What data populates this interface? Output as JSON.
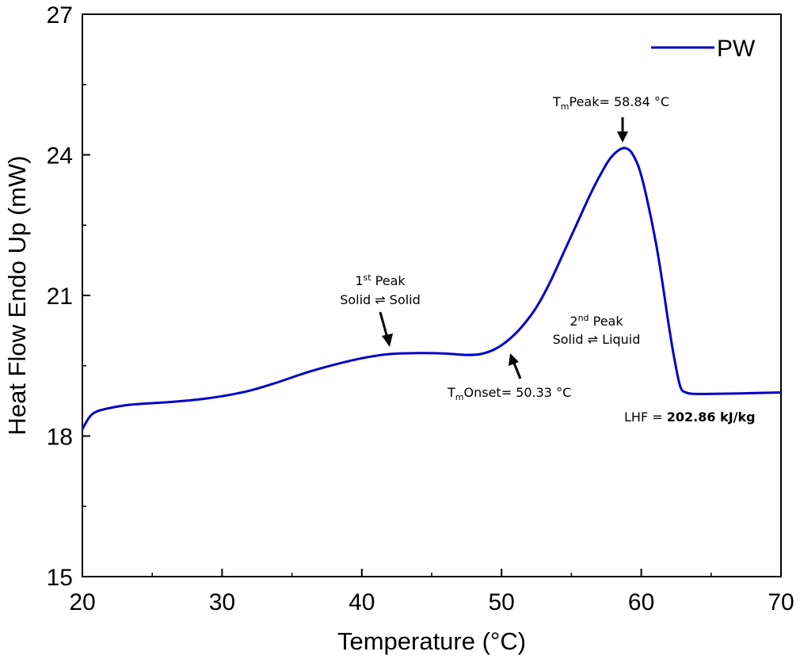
{
  "chart_data": {
    "type": "line",
    "title": "",
    "xlabel": "Temperature (°C)",
    "ylabel": "Heat Flow Endo Up (mW)",
    "xlim": [
      20,
      70
    ],
    "ylim": [
      15,
      27
    ],
    "xticks": [
      20,
      30,
      40,
      50,
      60,
      70
    ],
    "yticks": [
      15,
      18,
      21,
      24,
      27
    ],
    "grid": false,
    "legend_position": "top-right",
    "series": [
      {
        "name": "PW",
        "color": "#0000c8",
        "x": [
          20.0,
          20.5,
          21.0,
          22.0,
          23.5,
          26.0,
          28.0,
          30.0,
          32.0,
          34.0,
          36.0,
          38.0,
          40.0,
          42.0,
          44.0,
          46.0,
          47.5,
          48.5,
          49.5,
          50.5,
          51.5,
          52.5,
          53.5,
          54.5,
          55.5,
          56.5,
          57.5,
          58.0,
          58.5,
          58.9,
          59.3,
          59.8,
          60.3,
          61.0,
          61.5,
          62.0,
          62.4,
          62.8,
          63.2,
          63.8,
          65.0,
          67.0,
          70.0
        ],
        "y": [
          18.15,
          18.4,
          18.52,
          18.6,
          18.67,
          18.72,
          18.77,
          18.85,
          18.97,
          19.15,
          19.35,
          19.52,
          19.66,
          19.75,
          19.77,
          19.76,
          19.73,
          19.75,
          19.85,
          20.05,
          20.35,
          20.75,
          21.3,
          21.95,
          22.6,
          23.25,
          23.8,
          24.0,
          24.12,
          24.14,
          24.05,
          23.75,
          23.2,
          22.2,
          21.3,
          20.3,
          19.6,
          19.05,
          18.93,
          18.9,
          18.9,
          18.91,
          18.93
        ]
      }
    ],
    "annotations": {
      "peak1_line1": "1",
      "peak1_sup": "st",
      "peak1_line1_rest": " Peak",
      "peak1_line2": "Solid ⇌ Solid",
      "peak2_line1": "2",
      "peak2_sup": "nd",
      "peak2_line1_rest": " Peak",
      "peak2_line2": "Solid ⇌ Liquid",
      "tm_peak_T": "T",
      "tm_peak_sub": "m",
      "tm_peak_rest": "Peak= 58.84 °C",
      "tm_onset_T": "T",
      "tm_onset_sub": "m",
      "tm_onset_rest": "Onset= 50.33 °C",
      "lhf_label": "LHF = ",
      "lhf_value": "202.86 kJ/kg"
    }
  }
}
